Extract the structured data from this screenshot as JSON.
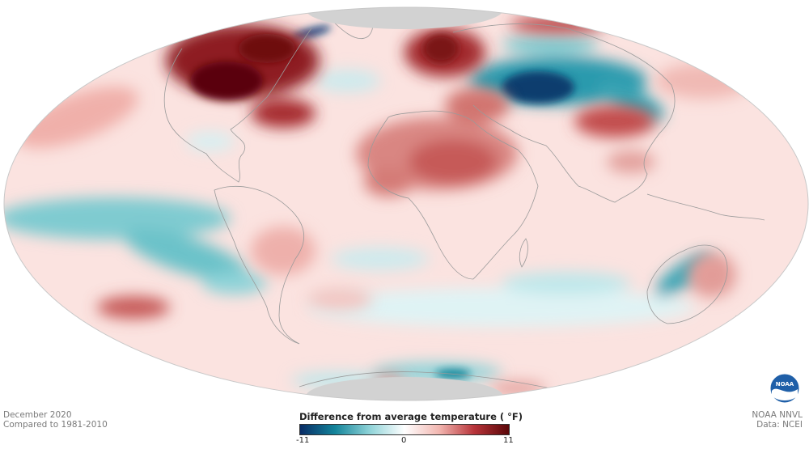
{
  "footer": {
    "date": "December 2020",
    "baseline": "Compared to 1981-2010",
    "source_line1": "NOAA NNVL",
    "source_line2": "Data: NCEI"
  },
  "legend": {
    "title": "Difference from average temperature ( °F)",
    "min_label": "-11",
    "mid_label": "0",
    "max_label": "11",
    "min_value": -11,
    "max_value": 11,
    "colors": {
      "cold_extreme": "#082c66",
      "cold": "#13849a",
      "cool": "#8fd3d8",
      "neutral": "#ffffff",
      "warm": "#f2b6b0",
      "hot": "#b8343a",
      "hot_extreme": "#5a0608"
    }
  },
  "map": {
    "projection": "mollweide",
    "no_data_color": "#d2d2d2",
    "border_color": "#9a9a9a"
  },
  "logo": {
    "text": "NOAA",
    "icon": "noaa-logo-icon",
    "color": "#1f5fa8"
  }
}
